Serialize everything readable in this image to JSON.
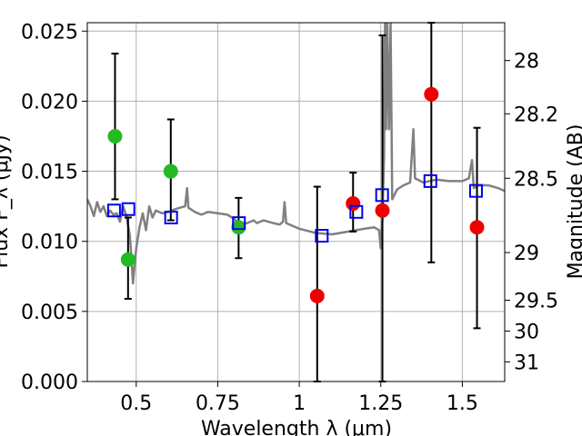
{
  "chart_data": {
    "type": "scatter",
    "xlabel": "Wavelength  λ (μm)",
    "ylabel": "Flux F_λ (μJy)",
    "ylabel_right": "Magnitude (AB)",
    "xlim": [
      0.35,
      1.63
    ],
    "ylim": [
      0.0,
      0.0256
    ],
    "x_ticks": [
      0.5,
      0.75,
      1.0,
      1.25,
      1.5
    ],
    "x_tick_labels": [
      "0.5",
      "0.75",
      "1",
      "1.25",
      "1.5"
    ],
    "y_ticks": [
      0.0,
      0.005,
      0.01,
      0.015,
      0.02,
      0.025
    ],
    "y_tick_labels": [
      "0.000",
      "0.005",
      "0.010",
      "0.015",
      "0.020",
      "0.025"
    ],
    "right_ticks": [
      {
        "label": "28",
        "flux": 0.0229
      },
      {
        "label": "28.2",
        "flux": 0.0191
      },
      {
        "label": "28.5",
        "flux": 0.0145
      },
      {
        "label": "29",
        "flux": 0.0092
      },
      {
        "label": "29.5",
        "flux": 0.0058
      },
      {
        "label": "30",
        "flux": 0.0036
      },
      {
        "label": "31",
        "flux": 0.0014
      }
    ],
    "grid": true,
    "colors": {
      "spectrum": "#808080",
      "green": "#22bb22",
      "red": "#ee0000",
      "model": "#0000ee",
      "errorbar": "#000000",
      "grid": "#b0b0b0"
    },
    "series": [
      {
        "marker": "green-circle",
        "points": [
          {
            "x": 0.435,
            "y": 0.0175,
            "yerr": [
              0.0045,
              0.0059
            ]
          },
          {
            "x": 0.475,
            "y": 0.0087,
            "yerr": [
              0.0028,
              0.003
            ]
          },
          {
            "x": 0.606,
            "y": 0.015,
            "yerr": [
              0.0035,
              0.0037
            ]
          },
          {
            "x": 0.814,
            "y": 0.011,
            "yerr": [
              0.0022,
              0.0021
            ]
          }
        ]
      },
      {
        "marker": "red-circle",
        "points": [
          {
            "x": 1.055,
            "y": 0.0061,
            "yerr": [
              0.0061,
              0.0078
            ]
          },
          {
            "x": 1.165,
            "y": 0.0127,
            "yerr": [
              0.002,
              0.0022
            ]
          },
          {
            "x": 1.255,
            "y": 0.0122,
            "yerr": [
              0.0122,
              0.0125
            ]
          },
          {
            "x": 1.405,
            "y": 0.0205,
            "yerr": [
              0.012,
              0.0055
            ]
          },
          {
            "x": 1.545,
            "y": 0.011,
            "yerr": [
              0.0072,
              0.0071
            ]
          }
        ]
      },
      {
        "marker": "blue-square",
        "points": [
          {
            "x": 0.432,
            "y": 0.0122
          },
          {
            "x": 0.476,
            "y": 0.0123
          },
          {
            "x": 0.607,
            "y": 0.0117
          },
          {
            "x": 0.815,
            "y": 0.0113
          },
          {
            "x": 1.069,
            "y": 0.0104
          },
          {
            "x": 1.175,
            "y": 0.0121
          },
          {
            "x": 1.254,
            "y": 0.0133
          },
          {
            "x": 1.402,
            "y": 0.0143
          },
          {
            "x": 1.542,
            "y": 0.0136
          }
        ]
      },
      {
        "marker": "gray-line",
        "points": [
          {
            "x": 0.35,
            "y": 0.013
          },
          {
            "x": 0.36,
            "y": 0.0125
          },
          {
            "x": 0.37,
            "y": 0.0118
          },
          {
            "x": 0.38,
            "y": 0.0128
          },
          {
            "x": 0.39,
            "y": 0.0121
          },
          {
            "x": 0.4,
            "y": 0.0125
          },
          {
            "x": 0.41,
            "y": 0.0118
          },
          {
            "x": 0.42,
            "y": 0.0122
          },
          {
            "x": 0.43,
            "y": 0.0119
          },
          {
            "x": 0.44,
            "y": 0.012
          },
          {
            "x": 0.45,
            "y": 0.0114
          },
          {
            "x": 0.46,
            "y": 0.0125
          },
          {
            "x": 0.47,
            "y": 0.0118
          },
          {
            "x": 0.48,
            "y": 0.0105
          },
          {
            "x": 0.485,
            "y": 0.009
          },
          {
            "x": 0.49,
            "y": 0.007
          },
          {
            "x": 0.5,
            "y": 0.0095
          },
          {
            "x": 0.51,
            "y": 0.011
          },
          {
            "x": 0.52,
            "y": 0.012
          },
          {
            "x": 0.53,
            "y": 0.0108
          },
          {
            "x": 0.54,
            "y": 0.0125
          },
          {
            "x": 0.55,
            "y": 0.0117
          },
          {
            "x": 0.56,
            "y": 0.0122
          },
          {
            "x": 0.58,
            "y": 0.012
          },
          {
            "x": 0.6,
            "y": 0.0121
          },
          {
            "x": 0.62,
            "y": 0.0123
          },
          {
            "x": 0.65,
            "y": 0.0125
          },
          {
            "x": 0.656,
            "y": 0.0138
          },
          {
            "x": 0.66,
            "y": 0.0124
          },
          {
            "x": 0.68,
            "y": 0.0121
          },
          {
            "x": 0.7,
            "y": 0.0119
          },
          {
            "x": 0.72,
            "y": 0.0121
          },
          {
            "x": 0.75,
            "y": 0.012
          },
          {
            "x": 0.78,
            "y": 0.0119
          },
          {
            "x": 0.8,
            "y": 0.0116
          },
          {
            "x": 0.82,
            "y": 0.0112
          },
          {
            "x": 0.84,
            "y": 0.0113
          },
          {
            "x": 0.86,
            "y": 0.0115
          },
          {
            "x": 0.87,
            "y": 0.0113
          },
          {
            "x": 0.89,
            "y": 0.0115
          },
          {
            "x": 0.92,
            "y": 0.0113
          },
          {
            "x": 0.94,
            "y": 0.0112
          },
          {
            "x": 0.95,
            "y": 0.0114
          },
          {
            "x": 0.955,
            "y": 0.0128
          },
          {
            "x": 0.96,
            "y": 0.0113
          },
          {
            "x": 1.0,
            "y": 0.0109
          },
          {
            "x": 1.05,
            "y": 0.0106
          },
          {
            "x": 1.1,
            "y": 0.0105
          },
          {
            "x": 1.15,
            "y": 0.0107
          },
          {
            "x": 1.2,
            "y": 0.0109
          },
          {
            "x": 1.23,
            "y": 0.011
          },
          {
            "x": 1.245,
            "y": 0.0108
          },
          {
            "x": 1.25,
            "y": 0.0095
          },
          {
            "x": 1.255,
            "y": 0.0115
          },
          {
            "x": 1.26,
            "y": 0.016
          },
          {
            "x": 1.263,
            "y": 0.0256
          },
          {
            "x": 1.266,
            "y": 0.018
          },
          {
            "x": 1.27,
            "y": 0.0256
          },
          {
            "x": 1.275,
            "y": 0.018
          },
          {
            "x": 1.28,
            "y": 0.0256
          },
          {
            "x": 1.285,
            "y": 0.013
          },
          {
            "x": 1.3,
            "y": 0.0137
          },
          {
            "x": 1.32,
            "y": 0.014
          },
          {
            "x": 1.34,
            "y": 0.0142
          },
          {
            "x": 1.35,
            "y": 0.018
          },
          {
            "x": 1.355,
            "y": 0.0145
          },
          {
            "x": 1.38,
            "y": 0.0142
          },
          {
            "x": 1.42,
            "y": 0.0144
          },
          {
            "x": 1.46,
            "y": 0.0143
          },
          {
            "x": 1.5,
            "y": 0.0143
          },
          {
            "x": 1.52,
            "y": 0.0145
          },
          {
            "x": 1.53,
            "y": 0.0158
          },
          {
            "x": 1.535,
            "y": 0.0138
          },
          {
            "x": 1.55,
            "y": 0.014
          },
          {
            "x": 1.58,
            "y": 0.014
          },
          {
            "x": 1.61,
            "y": 0.0138
          },
          {
            "x": 1.63,
            "y": 0.0136
          }
        ]
      }
    ]
  }
}
